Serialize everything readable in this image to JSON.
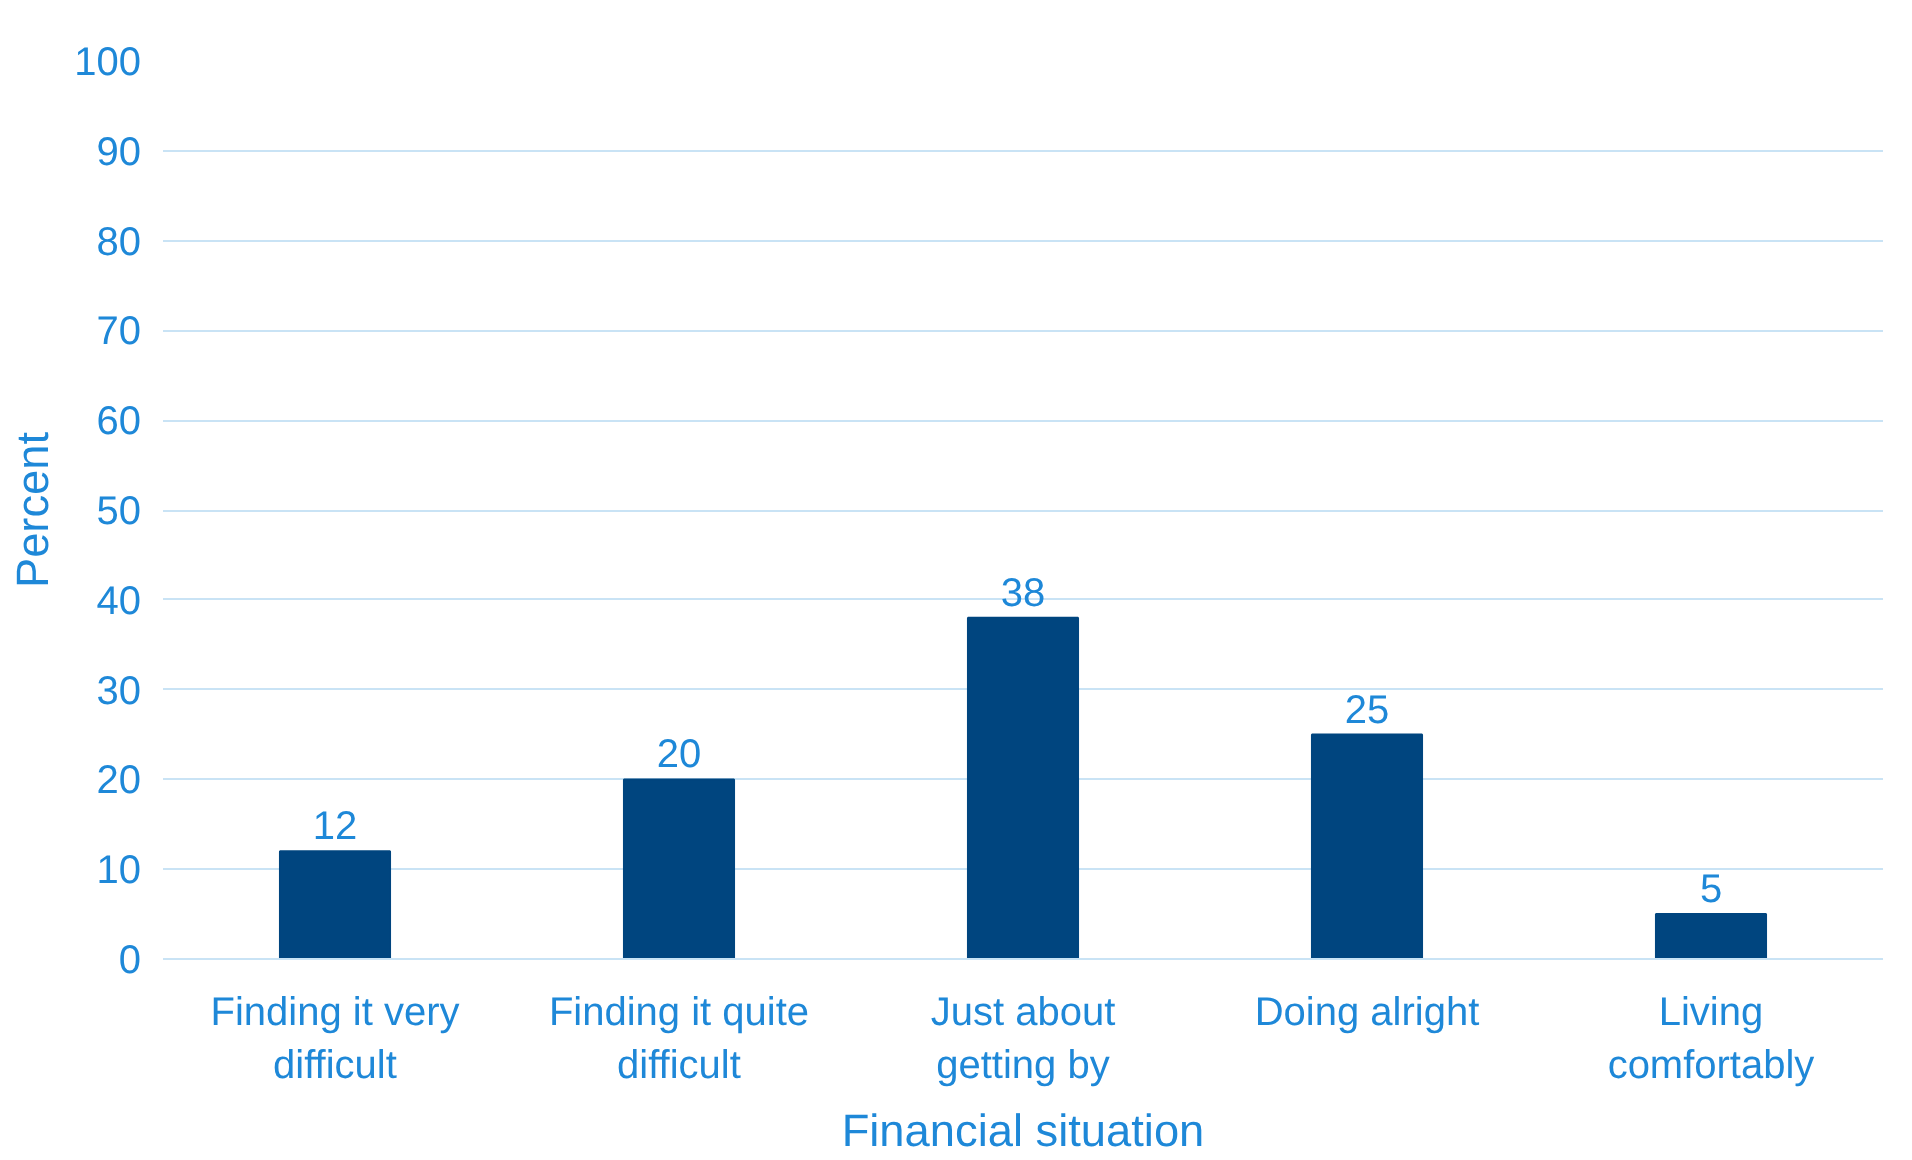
{
  "chart_data": {
    "type": "bar",
    "xlabel": "Financial situation",
    "ylabel": "Percent",
    "categories": [
      "Finding it very difficult",
      "Finding it quite difficult",
      "Just about getting by",
      "Doing alright",
      "Living comfortably"
    ],
    "values": [
      12,
      20,
      38,
      25,
      5
    ],
    "color": "#00457f",
    "ylim": [
      0,
      100
    ],
    "yticks": [
      0,
      10,
      20,
      30,
      40,
      50,
      60,
      70,
      80,
      90,
      100
    ],
    "grid": "y",
    "data_labels": true
  }
}
